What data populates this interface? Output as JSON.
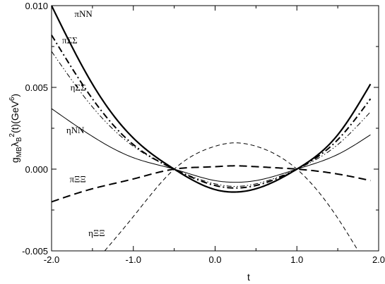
{
  "chart_data": {
    "type": "line",
    "title": "",
    "xlabel": "t",
    "ylabel": "g",
    "ylabel_parts": {
      "base": "g",
      "sub1": "MB",
      "mid1": "λ",
      "sub2": "B",
      "sup1": "2",
      "mid2": "(t)(GeV",
      "sup2": "6",
      "end": ")"
    },
    "xlim": [
      -2.0,
      2.0
    ],
    "ylim": [
      -0.005,
      0.01
    ],
    "xticks": [
      -2.0,
      -1.0,
      0.0,
      1.0,
      2.0
    ],
    "xtick_labels": [
      "-2.0",
      "-1.0",
      "0.0",
      "1.0",
      "2.0"
    ],
    "yticks": [
      -0.005,
      0.0,
      0.005,
      0.01
    ],
    "ytick_labels": [
      "-0.005",
      "0.000",
      "0.005",
      "0.010"
    ],
    "grid": false,
    "legend": "inline labels",
    "series": [
      {
        "name": "πNN",
        "x": [
          -2.0,
          -1.5,
          -1.0,
          -0.5,
          0.0,
          0.2,
          0.5,
          1.0,
          1.5,
          1.9
        ],
        "y": [
          0.01,
          0.0052,
          0.0019,
          0.0,
          -0.00125,
          -0.0014,
          -0.0012,
          0.0,
          0.0021,
          0.0052
        ],
        "style": "solid",
        "width": 2.2
      },
      {
        "name": "πΣΣ",
        "x": [
          -2.0,
          -1.5,
          -1.0,
          -0.5,
          0.0,
          0.2,
          0.5,
          1.0,
          1.5,
          1.9
        ],
        "y": [
          0.0082,
          0.0043,
          0.0015,
          0.0,
          -0.001,
          -0.00115,
          -0.001,
          0.0,
          0.0018,
          0.0043
        ],
        "style": "dashdot",
        "width": 2.0
      },
      {
        "name": "ηΣΣ",
        "x": [
          -2.0,
          -1.5,
          -1.0,
          -0.5,
          0.0,
          0.2,
          0.5,
          1.0,
          1.5,
          1.9
        ],
        "y": [
          0.0072,
          0.0038,
          0.0014,
          0.0,
          -0.0009,
          -0.00105,
          -0.0009,
          0.0,
          0.0015,
          0.0035
        ],
        "style": "dashdotdot",
        "width": 1.0
      },
      {
        "name": "ηNN",
        "x": [
          -2.0,
          -1.5,
          -1.0,
          -0.5,
          0.0,
          0.2,
          0.5,
          1.0,
          1.5,
          1.9
        ],
        "y": [
          0.0037,
          0.002,
          0.0007,
          0.0,
          -0.0007,
          -0.0008,
          -0.0007,
          0.0,
          0.0009,
          0.0021
        ],
        "style": "solid",
        "width": 1.0
      },
      {
        "name": "πΞΞ",
        "x": [
          -2.0,
          -1.5,
          -1.0,
          -0.5,
          0.0,
          0.2,
          0.5,
          1.0,
          1.5,
          1.9
        ],
        "y": [
          -0.002,
          -0.0012,
          -0.0006,
          0.0,
          0.00015,
          0.0002,
          0.00015,
          0.0,
          -0.0003,
          -0.0007
        ],
        "style": "dashed",
        "width": 2.0
      },
      {
        "name": "ηΞΞ",
        "x": [
          -1.35,
          -1.0,
          -0.5,
          0.0,
          0.2,
          0.5,
          1.0,
          1.5,
          1.75
        ],
        "y": [
          -0.005,
          -0.0029,
          0.0,
          0.0014,
          0.0016,
          0.0014,
          0.0,
          -0.003,
          -0.005
        ],
        "style": "dashed-thin",
        "width": 1.0
      }
    ],
    "series_labels": [
      {
        "text": "πNN",
        "x": -1.72,
        "y": 0.0093
      },
      {
        "text": "πΣΣ",
        "x": -1.87,
        "y": 0.0077
      },
      {
        "text": "ηΣΣ",
        "x": -1.77,
        "y": 0.0048
      },
      {
        "text": "ηNN",
        "x": -1.82,
        "y": 0.0022
      },
      {
        "text": "πΞΞ",
        "x": -1.78,
        "y": -0.0008
      },
      {
        "text": "ηΞΞ",
        "x": -1.55,
        "y": -0.0041
      }
    ]
  }
}
